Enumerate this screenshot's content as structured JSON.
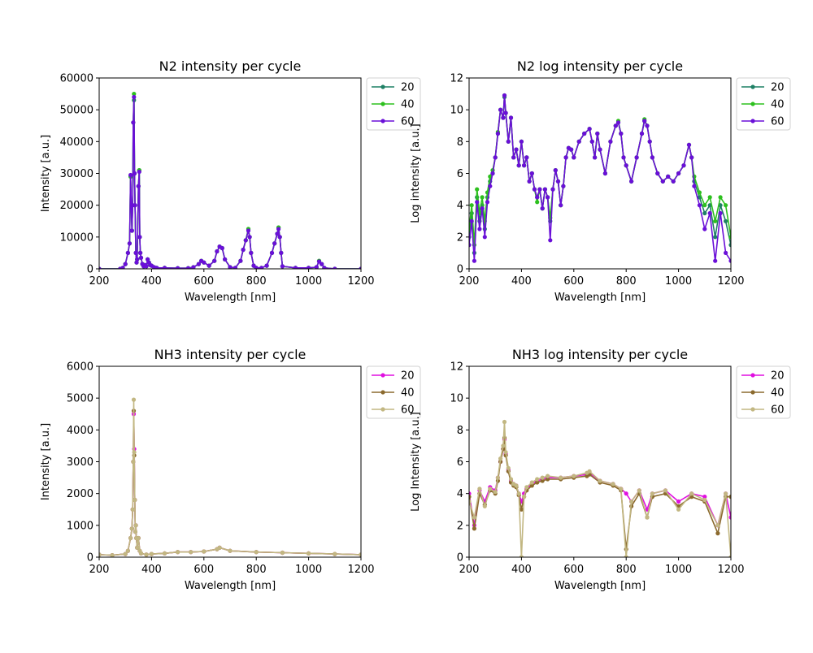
{
  "chart_data": [
    {
      "type": "line",
      "title": "N2 intensity per cycle",
      "xlabel": "Wavelength [nm]",
      "ylabel": "Intensity [a.u.]",
      "xlim": [
        200,
        1200
      ],
      "ylim": [
        0,
        60000
      ],
      "xticks": [
        200,
        400,
        600,
        800,
        1000,
        1200
      ],
      "yticks": [
        0,
        10000,
        20000,
        30000,
        40000,
        50000,
        60000
      ],
      "legend": "outside-right-top",
      "grid": false,
      "x": [
        200,
        280,
        290,
        300,
        310,
        316,
        320,
        325,
        328,
        330,
        333,
        335,
        337,
        340,
        343,
        345,
        350,
        353,
        355,
        357,
        360,
        365,
        370,
        375,
        380,
        385,
        390,
        395,
        400,
        410,
        420,
        450,
        500,
        540,
        560,
        580,
        590,
        600,
        620,
        640,
        650,
        660,
        670,
        680,
        700,
        720,
        740,
        750,
        760,
        770,
        775,
        780,
        790,
        800,
        820,
        840,
        860,
        870,
        880,
        885,
        890,
        895,
        900,
        950,
        1000,
        1030,
        1040,
        1050,
        1060,
        1100,
        1200
      ],
      "series": [
        {
          "name": "20",
          "color": "#1f8065",
          "values": [
            0,
            0,
            300,
            1500,
            5000,
            8000,
            29000,
            12000,
            20000,
            46000,
            53000,
            30000,
            20000,
            5000,
            2000,
            3000,
            26000,
            31000,
            10000,
            5000,
            3500,
            1500,
            800,
            1200,
            800,
            3000,
            2000,
            1200,
            1000,
            500,
            300,
            300,
            200,
            200,
            500,
            1500,
            2500,
            2000,
            1000,
            2500,
            5500,
            7000,
            6500,
            3000,
            500,
            300,
            2500,
            6000,
            9000,
            12500,
            10000,
            5000,
            1000,
            300,
            300,
            1000,
            5000,
            8000,
            11000,
            13000,
            10000,
            5000,
            800,
            300,
            300,
            500,
            2500,
            1500,
            300,
            0,
            0
          ]
        },
        {
          "name": "40",
          "color": "#2dc01e",
          "values": [
            0,
            0,
            300,
            1500,
            5000,
            8000,
            29000,
            12000,
            20000,
            46000,
            55000,
            30000,
            20000,
            5000,
            2000,
            3000,
            26000,
            31000,
            10000,
            5000,
            3500,
            1500,
            800,
            1200,
            800,
            3000,
            2000,
            1200,
            1000,
            500,
            300,
            300,
            200,
            200,
            500,
            1500,
            2500,
            2000,
            1000,
            2500,
            5500,
            7000,
            6500,
            3000,
            500,
            300,
            2500,
            6000,
            9000,
            12500,
            10000,
            5000,
            1000,
            300,
            300,
            1000,
            5000,
            8000,
            11000,
            13000,
            10000,
            5000,
            800,
            300,
            300,
            500,
            2500,
            1500,
            300,
            0,
            0
          ]
        },
        {
          "name": "60",
          "color": "#6a0fd8",
          "values": [
            0,
            0,
            300,
            1500,
            5000,
            8000,
            29500,
            12000,
            20000,
            46000,
            54000,
            30000,
            20000,
            5000,
            2000,
            3000,
            26000,
            30500,
            10000,
            5000,
            3500,
            1500,
            800,
            1200,
            800,
            3000,
            2000,
            1200,
            1000,
            500,
            300,
            300,
            200,
            200,
            500,
            1500,
            2500,
            2000,
            1000,
            2500,
            5500,
            7000,
            6500,
            3000,
            500,
            300,
            2500,
            6000,
            9000,
            12000,
            10000,
            5000,
            1000,
            300,
            300,
            1000,
            5000,
            8000,
            11000,
            12500,
            10000,
            5000,
            800,
            300,
            300,
            500,
            2300,
            1500,
            300,
            0,
            0
          ]
        }
      ]
    },
    {
      "type": "line",
      "title": "N2 log intensity per cycle",
      "xlabel": "Wavelength [nm]",
      "ylabel": "Log intensity [a.u.]",
      "xlim": [
        200,
        1200
      ],
      "ylim": [
        0,
        12
      ],
      "xticks": [
        200,
        400,
        600,
        800,
        1000,
        1200
      ],
      "yticks": [
        0,
        2,
        4,
        6,
        8,
        10,
        12
      ],
      "legend": "outside-right-top",
      "grid": false,
      "x": [
        200,
        210,
        220,
        230,
        240,
        250,
        260,
        270,
        280,
        290,
        300,
        310,
        320,
        330,
        335,
        340,
        350,
        360,
        370,
        380,
        390,
        400,
        410,
        420,
        430,
        440,
        450,
        460,
        470,
        480,
        490,
        500,
        510,
        520,
        530,
        540,
        550,
        560,
        570,
        580,
        590,
        600,
        620,
        640,
        660,
        670,
        680,
        690,
        700,
        720,
        740,
        760,
        770,
        780,
        790,
        800,
        820,
        840,
        860,
        870,
        880,
        890,
        900,
        920,
        940,
        960,
        980,
        1000,
        1020,
        1040,
        1050,
        1060,
        1080,
        1100,
        1120,
        1140,
        1160,
        1180,
        1200
      ],
      "series": [
        {
          "name": "20",
          "color": "#1f8065",
          "values": [
            2.0,
            3.5,
            1.0,
            4.5,
            3.0,
            4.0,
            2.5,
            4.5,
            5.5,
            6.0,
            7.0,
            8.5,
            10.0,
            9.5,
            10.8,
            9.8,
            8.0,
            9.5,
            7.0,
            7.5,
            6.5,
            8.0,
            6.5,
            7.0,
            5.5,
            6.0,
            5.0,
            4.5,
            5.0,
            3.8,
            5.0,
            4.5,
            3.0,
            5.0,
            6.2,
            5.5,
            4.0,
            5.2,
            7.0,
            7.6,
            7.5,
            7.0,
            8.0,
            8.5,
            8.8,
            8.0,
            7.0,
            8.5,
            7.5,
            6.0,
            8.0,
            9.0,
            9.2,
            8.5,
            7.0,
            6.5,
            5.5,
            7.0,
            8.5,
            9.3,
            9.0,
            8.0,
            7.0,
            6.0,
            5.5,
            5.8,
            5.5,
            6.0,
            6.5,
            7.8,
            7.0,
            5.5,
            4.5,
            3.5,
            4.0,
            2.0,
            4.0,
            3.0,
            1.5
          ]
        },
        {
          "name": "40",
          "color": "#2dc01e",
          "values": [
            2.5,
            4.0,
            1.5,
            5.0,
            3.5,
            4.5,
            3.0,
            4.8,
            5.8,
            6.2,
            7.0,
            8.6,
            10.0,
            9.5,
            10.9,
            9.8,
            8.0,
            9.5,
            7.0,
            7.5,
            6.5,
            8.0,
            6.5,
            7.0,
            5.5,
            6.0,
            5.0,
            4.2,
            5.0,
            3.8,
            5.0,
            4.5,
            3.2,
            5.0,
            6.2,
            5.5,
            4.0,
            5.2,
            7.0,
            7.6,
            7.5,
            7.0,
            8.0,
            8.5,
            8.8,
            8.0,
            7.0,
            8.5,
            7.5,
            6.0,
            8.0,
            9.0,
            9.3,
            8.5,
            7.0,
            6.5,
            5.5,
            7.0,
            8.5,
            9.4,
            9.0,
            8.0,
            7.0,
            6.0,
            5.5,
            5.8,
            5.5,
            6.0,
            6.5,
            7.8,
            7.0,
            5.8,
            4.8,
            4.0,
            4.5,
            3.0,
            4.5,
            4.0,
            2.0
          ]
        },
        {
          "name": "60",
          "color": "#6a0fd8",
          "values": [
            1.5,
            3.0,
            0.5,
            4.2,
            2.5,
            3.8,
            2.0,
            4.2,
            5.2,
            6.0,
            7.0,
            8.5,
            10.0,
            9.5,
            10.9,
            9.8,
            8.0,
            9.5,
            7.0,
            7.5,
            6.5,
            8.0,
            6.5,
            7.0,
            5.5,
            6.0,
            5.0,
            4.5,
            5.0,
            3.8,
            5.0,
            4.5,
            1.8,
            5.0,
            6.2,
            5.5,
            4.0,
            5.2,
            7.0,
            7.6,
            7.5,
            7.0,
            8.0,
            8.5,
            8.8,
            8.0,
            7.0,
            8.5,
            7.5,
            6.0,
            8.0,
            9.0,
            9.2,
            8.5,
            7.0,
            6.5,
            5.5,
            7.0,
            8.5,
            9.3,
            9.0,
            8.0,
            7.0,
            6.0,
            5.5,
            5.8,
            5.5,
            6.0,
            6.5,
            7.8,
            7.0,
            5.2,
            4.0,
            2.5,
            3.5,
            0.5,
            3.5,
            1.0,
            0.5
          ]
        }
      ]
    },
    {
      "type": "line",
      "title": "NH3 intensity per cycle",
      "xlabel": "Wavelength [nm]",
      "ylabel": "Intensity [a.u.]",
      "xlim": [
        200,
        1200
      ],
      "ylim": [
        0,
        6000
      ],
      "xticks": [
        200,
        400,
        600,
        800,
        1000,
        1200
      ],
      "yticks": [
        0,
        1000,
        2000,
        3000,
        4000,
        5000,
        6000
      ],
      "legend": "outside-right-top",
      "grid": false,
      "x": [
        200,
        250,
        300,
        310,
        320,
        325,
        328,
        330,
        332,
        334,
        336,
        338,
        340,
        342,
        345,
        350,
        355,
        360,
        380,
        400,
        450,
        500,
        550,
        600,
        650,
        660,
        700,
        800,
        900,
        1000,
        1100,
        1200
      ],
      "series": [
        {
          "name": "20",
          "color": "#e010e0",
          "values": [
            80,
            60,
            100,
            200,
            600,
            900,
            1500,
            3000,
            4500,
            3400,
            1800,
            800,
            1000,
            600,
            300,
            600,
            200,
            120,
            80,
            100,
            120,
            160,
            160,
            180,
            250,
            300,
            200,
            160,
            140,
            120,
            100,
            80
          ]
        },
        {
          "name": "40",
          "color": "#8b6a2e",
          "values": [
            80,
            60,
            100,
            200,
            600,
            900,
            1500,
            3000,
            4600,
            3200,
            1800,
            800,
            1000,
            600,
            300,
            600,
            200,
            120,
            80,
            100,
            120,
            160,
            160,
            180,
            250,
            300,
            200,
            160,
            140,
            120,
            100,
            80
          ]
        },
        {
          "name": "60",
          "color": "#c2b782",
          "values": [
            80,
            60,
            100,
            200,
            600,
            900,
            1500,
            3000,
            4950,
            3300,
            1800,
            800,
            1000,
            600,
            300,
            600,
            200,
            120,
            80,
            100,
            120,
            160,
            160,
            180,
            250,
            300,
            200,
            160,
            140,
            120,
            100,
            80
          ]
        }
      ]
    },
    {
      "type": "line",
      "title": "NH3 log intensity per cycle",
      "xlabel": "Wavelength [nm]",
      "ylabel": "Log Intensity [a.u.]",
      "xlim": [
        200,
        1200
      ],
      "ylim": [
        0,
        12
      ],
      "xticks": [
        200,
        400,
        600,
        800,
        1000,
        1200
      ],
      "yticks": [
        0,
        2,
        4,
        6,
        8,
        10,
        12
      ],
      "legend": "outside-right-top",
      "grid": false,
      "x": [
        200,
        220,
        240,
        260,
        280,
        300,
        310,
        320,
        330,
        335,
        340,
        350,
        360,
        370,
        380,
        390,
        400,
        410,
        420,
        440,
        460,
        480,
        500,
        550,
        600,
        650,
        660,
        700,
        750,
        780,
        800,
        820,
        850,
        880,
        900,
        950,
        1000,
        1050,
        1100,
        1150,
        1180,
        1200
      ],
      "series": [
        {
          "name": "20",
          "color": "#e010e0",
          "values": [
            4.0,
            2.0,
            4.2,
            3.5,
            4.4,
            4.2,
            5.0,
            6.0,
            6.8,
            7.4,
            6.5,
            5.5,
            4.8,
            4.6,
            4.5,
            4.0,
            3.5,
            4.0,
            4.3,
            4.6,
            4.8,
            4.9,
            5.0,
            5.0,
            5.1,
            5.2,
            5.3,
            4.8,
            4.6,
            4.3,
            4.0,
            3.5,
            4.2,
            3.0,
            4.0,
            4.2,
            3.5,
            4.0,
            3.8,
            2.0,
            4.0,
            2.5
          ]
        },
        {
          "name": "40",
          "color": "#8b6a2e",
          "values": [
            3.8,
            1.8,
            4.0,
            3.3,
            4.2,
            4.0,
            4.8,
            6.0,
            6.8,
            7.5,
            6.4,
            5.4,
            4.7,
            4.5,
            4.4,
            3.9,
            3.0,
            3.8,
            4.2,
            4.5,
            4.7,
            4.8,
            4.9,
            4.9,
            5.0,
            5.1,
            5.2,
            4.7,
            4.5,
            4.2,
            0.5,
            3.2,
            4.0,
            2.5,
            3.8,
            4.0,
            3.2,
            3.8,
            3.5,
            1.5,
            3.8,
            3.8
          ]
        },
        {
          "name": "60",
          "color": "#c2b782",
          "values": [
            3.5,
            2.5,
            4.3,
            3.2,
            4.3,
            4.1,
            5.0,
            6.2,
            7.0,
            8.5,
            6.6,
            5.6,
            4.9,
            4.6,
            4.5,
            4.0,
            0.0,
            3.8,
            4.4,
            4.7,
            4.9,
            5.0,
            5.1,
            5.0,
            5.1,
            5.3,
            5.4,
            4.8,
            4.6,
            4.3,
            0.0,
            3.5,
            4.2,
            2.5,
            4.0,
            4.2,
            3.0,
            4.0,
            3.6,
            2.0,
            4.0,
            0.0
          ]
        }
      ]
    }
  ]
}
